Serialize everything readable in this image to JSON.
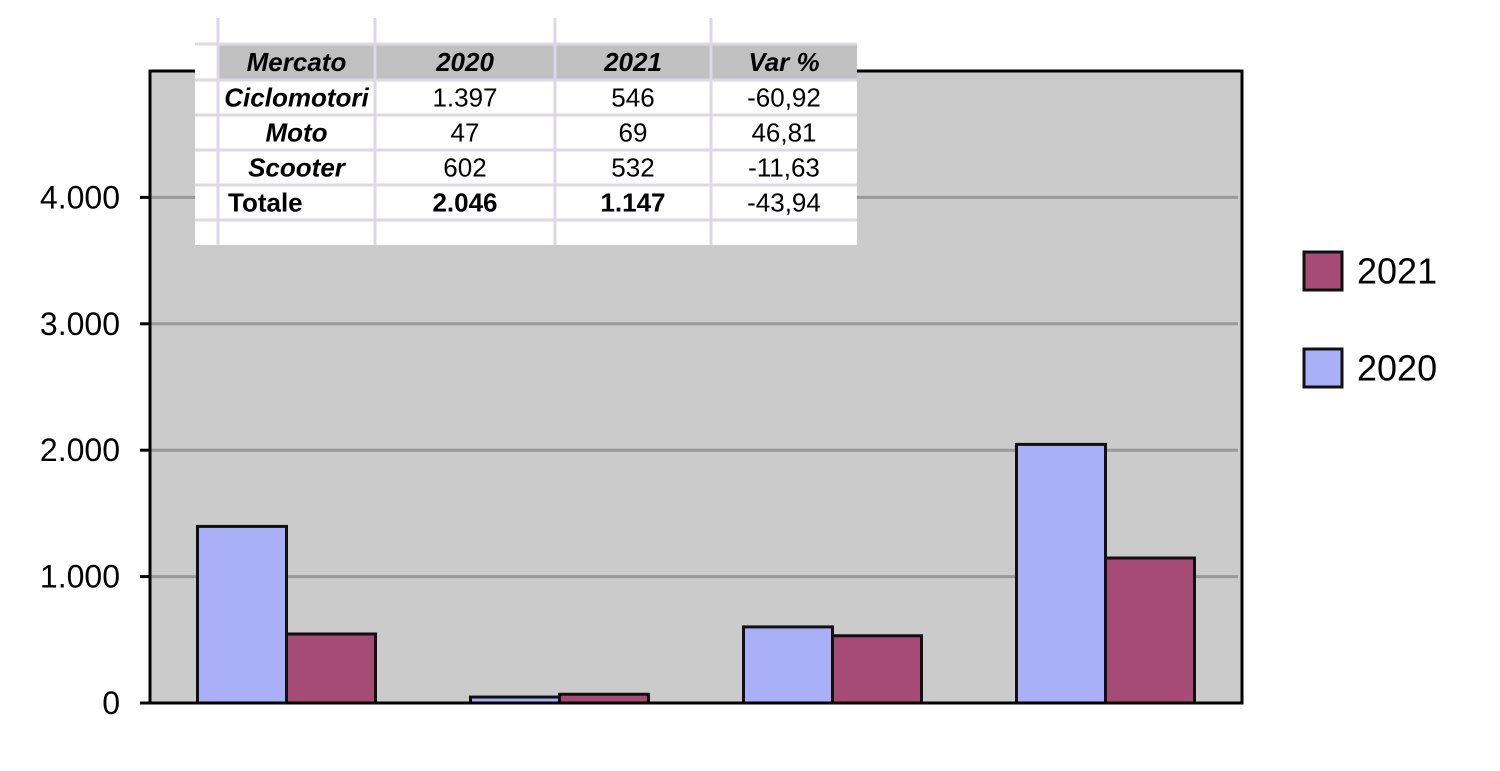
{
  "chart_data": {
    "type": "bar",
    "categories": [
      null,
      null,
      null,
      null
    ],
    "series": [
      {
        "name": "2020",
        "color": "#a9b0f8",
        "values": [
          1397,
          47,
          602,
          2046
        ]
      },
      {
        "name": "2021",
        "color": "#a64b76",
        "values": [
          546,
          69,
          532,
          1147
        ]
      }
    ],
    "ylim": [
      0,
      5000
    ],
    "yticks": [
      0,
      {
        "value": 1000,
        "label": "1.000"
      },
      {
        "value": 2000,
        "label": "2.000"
      },
      {
        "value": 3000,
        "label": "3.000"
      },
      {
        "value": 4000,
        "label": "4.000"
      }
    ],
    "grid": true,
    "legend": "right",
    "table": {
      "columns": [
        "Mercato",
        "2020",
        "2021",
        "Var %"
      ],
      "rows": [
        [
          "Ciclomotori",
          "1.397",
          "546",
          "-60,92"
        ],
        [
          "Moto",
          "47",
          "69",
          "46,81"
        ],
        [
          "Scooter",
          "602",
          "532",
          "-11,63"
        ],
        [
          "Totale",
          "2.046",
          "1.147",
          "-43,94"
        ]
      ]
    }
  }
}
